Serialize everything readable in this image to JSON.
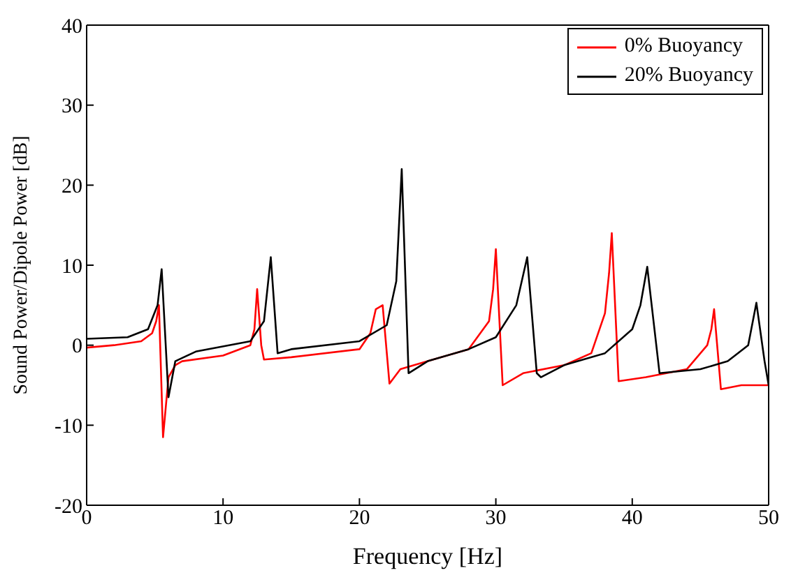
{
  "chart_data": {
    "type": "line",
    "xlabel": "Frequency [Hz]",
    "ylabel": "Sound Power/Dipole Power [dB]",
    "xlim": [
      0,
      50
    ],
    "ylim": [
      -20,
      40
    ],
    "xticks": [
      0,
      10,
      20,
      30,
      40,
      50
    ],
    "yticks": [
      -20,
      -10,
      0,
      10,
      20,
      30,
      40
    ],
    "legend": "top right",
    "marker": "none",
    "line_style": "solid",
    "series": [
      {
        "name": "0% Buoyancy",
        "color": "#ff0000",
        "x": [
          0,
          2,
          4,
          4.8,
          5.1,
          5.3,
          5.6,
          6.0,
          6.5,
          7,
          10,
          12,
          12.3,
          12.5,
          12.8,
          13,
          15,
          20,
          20.8,
          21.2,
          21.7,
          22.2,
          23,
          25,
          28,
          29.5,
          29.8,
          30,
          30.5,
          32,
          35,
          37,
          38,
          38.3,
          38.5,
          39,
          41,
          44,
          45.5,
          45.8,
          46,
          46.5,
          48,
          50
        ],
        "values": [
          -0.3,
          0,
          0.5,
          1.5,
          3,
          5,
          -11.5,
          -4,
          -2.5,
          -2,
          -1.3,
          0,
          2,
          7,
          0,
          -1.8,
          -1.5,
          -0.5,
          1.5,
          4.5,
          5,
          -4.8,
          -3,
          -2,
          -0.5,
          3,
          7,
          12,
          -5,
          -3.5,
          -2.5,
          -1,
          4,
          9,
          14,
          -4.5,
          -4,
          -3,
          0,
          2,
          4.5,
          -5.5,
          -5,
          -5
        ]
      },
      {
        "name": "20% Buoyancy",
        "color": "#000000",
        "x": [
          0,
          3,
          4.5,
          5.2,
          5.5,
          6.0,
          6.5,
          8,
          12,
          13,
          13.5,
          14,
          15,
          20,
          22,
          22.7,
          23.1,
          23.6,
          25,
          28,
          30,
          31.5,
          32.3,
          33,
          33.3,
          35,
          38,
          40,
          40.6,
          41.1,
          42,
          45,
          47,
          48.5,
          49.1,
          49.7,
          50
        ],
        "values": [
          0.8,
          1,
          2,
          5,
          9.5,
          -6.5,
          -2,
          -0.8,
          0.5,
          3,
          11,
          -1,
          -0.5,
          0.5,
          2.5,
          8,
          22,
          -3.5,
          -2,
          -0.5,
          1,
          5,
          11,
          -3.5,
          -4,
          -2.5,
          -1,
          2,
          5,
          9.8,
          -3.5,
          -3,
          -2,
          0,
          5.3,
          -2,
          -5
        ]
      }
    ]
  }
}
